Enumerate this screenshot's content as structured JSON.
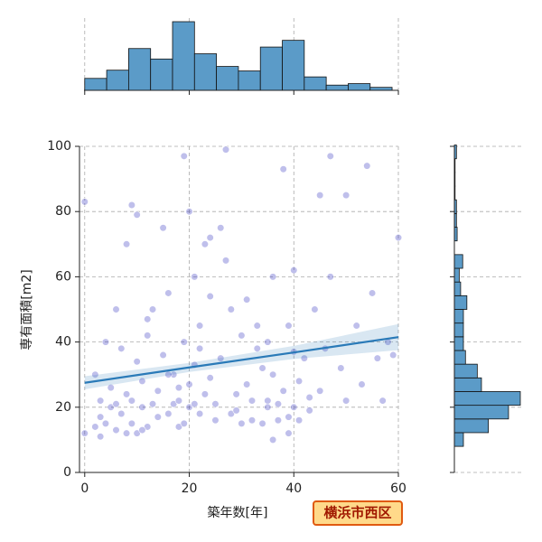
{
  "chart_data": {
    "type": "jointplot",
    "xlabel": "築年数[年]",
    "ylabel": "専有面積[m2]",
    "badge": "横浜市西区",
    "xlim": [
      -1,
      60
    ],
    "ylim": [
      0,
      100
    ],
    "xticks": [
      0,
      20,
      40,
      60
    ],
    "yticks": [
      0,
      20,
      40,
      60,
      80,
      100
    ],
    "grid": true,
    "color": "#2b2bbd",
    "hist_color": "#5b9bc8",
    "line_color": "#2a7ab8",
    "x": [
      0,
      0,
      2,
      3,
      3,
      4,
      5,
      5,
      6,
      6,
      7,
      8,
      8,
      9,
      9,
      10,
      10,
      11,
      11,
      12,
      12,
      13,
      14,
      14,
      15,
      16,
      16,
      17,
      17,
      18,
      18,
      19,
      19,
      20,
      20,
      20,
      21,
      21,
      22,
      22,
      23,
      23,
      24,
      24,
      25,
      26,
      27,
      27,
      28,
      28,
      29,
      30,
      30,
      31,
      32,
      33,
      34,
      35,
      35,
      36,
      37,
      38,
      38,
      39,
      39,
      40,
      40,
      41,
      42,
      43,
      44,
      45,
      46,
      47,
      47,
      49,
      50,
      52,
      53,
      54,
      55,
      56,
      57,
      58,
      59,
      60,
      9,
      10,
      8,
      15,
      13,
      24,
      26,
      33,
      36,
      45,
      50,
      35,
      7,
      4,
      2,
      3,
      11,
      18,
      19,
      21,
      25,
      29,
      32,
      37,
      39,
      41,
      43,
      36,
      12,
      6,
      16,
      22,
      31,
      34,
      40
    ],
    "y": [
      12,
      83,
      14,
      17,
      22,
      15,
      20,
      26,
      13,
      21,
      18,
      12,
      24,
      15,
      22,
      12,
      34,
      20,
      28,
      14,
      47,
      21,
      17,
      25,
      36,
      18,
      55,
      21,
      30,
      22,
      14,
      40,
      97,
      20,
      27,
      80,
      33,
      60,
      18,
      45,
      24,
      70,
      29,
      54,
      21,
      35,
      65,
      99,
      18,
      50,
      24,
      15,
      42,
      27,
      16,
      38,
      15,
      22,
      20,
      30,
      16,
      25,
      93,
      17,
      45,
      20,
      62,
      28,
      35,
      19,
      50,
      25,
      38,
      97,
      60,
      32,
      22,
      45,
      27,
      94,
      55,
      35,
      22,
      40,
      36,
      72,
      82,
      79,
      70,
      75,
      50,
      72,
      75,
      45,
      60,
      85,
      85,
      40,
      38,
      40,
      30,
      11,
      13,
      26,
      15,
      21,
      16,
      19,
      22,
      21,
      12,
      16,
      23,
      10,
      42,
      50,
      30,
      38,
      53,
      32,
      37
    ],
    "regression": {
      "x": [
        0,
        20,
        40,
        60
      ],
      "y": [
        27.5,
        32.2,
        36.8,
        41.5
      ],
      "ci_lower": [
        25.5,
        30.8,
        34.8,
        37.5
      ],
      "ci_upper": [
        29.5,
        33.6,
        38.8,
        45.5
      ]
    },
    "x_hist": {
      "bins": [
        0,
        4.2,
        8.4,
        12.6,
        16.8,
        21,
        25.2,
        29.4,
        33.6,
        37.8,
        42,
        46.2,
        50.4,
        54.6,
        58.8
      ],
      "counts": [
        16,
        27,
        56,
        42,
        92,
        49,
        32,
        26,
        58,
        67,
        18,
        7,
        9,
        4
      ]
    },
    "y_hist": {
      "bins": [
        8,
        12.2,
        16.4,
        20.6,
        24.8,
        29,
        33.2,
        37.4,
        41.6,
        45.8,
        50,
        54.2,
        58.4,
        62.6,
        66.8,
        71,
        75.2,
        79.4,
        83.6,
        87.8,
        92,
        96.2,
        100.4
      ],
      "counts": [
        13,
        49,
        78,
        95,
        39,
        33,
        16,
        13,
        13,
        13,
        18,
        9,
        7,
        12,
        0,
        4,
        3,
        3,
        1,
        1,
        1,
        3
      ]
    }
  }
}
